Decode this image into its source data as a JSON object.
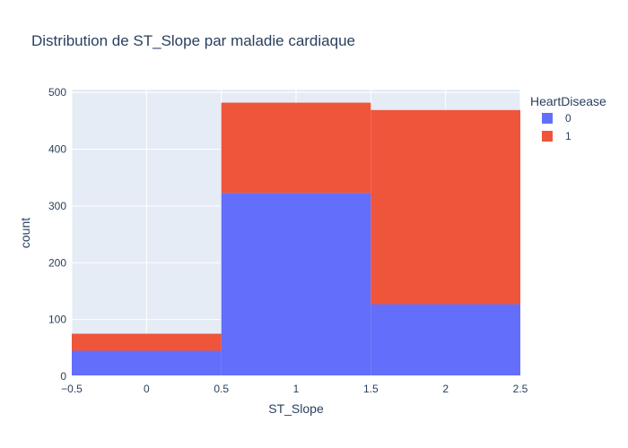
{
  "colors": {
    "plot_bg": "#e5ecf6",
    "grid": "#ffffff",
    "text": "#2a3f5f"
  },
  "chart_data": {
    "type": "bar",
    "barmode": "stack",
    "title": "Distribution de ST_Slope par maladie cardiaque",
    "xlabel": "ST_Slope",
    "ylabel": "count",
    "xlim": [
      -0.5,
      2.5
    ],
    "ylim": [
      0,
      505
    ],
    "x_ticks": [
      "−0.5",
      "0",
      "0.5",
      "1",
      "1.5",
      "2",
      "2.5"
    ],
    "x_tick_values": [
      -0.5,
      0,
      0.5,
      1,
      1.5,
      2,
      2.5
    ],
    "y_ticks": [
      "0",
      "100",
      "200",
      "300",
      "400",
      "500"
    ],
    "y_tick_values": [
      0,
      100,
      200,
      300,
      400,
      500
    ],
    "categories": [
      0,
      1,
      2
    ],
    "bin_width": 1,
    "grid": true,
    "legend": {
      "title": "HeartDisease",
      "placement": "top-right"
    },
    "series": [
      {
        "name": "0",
        "color": "#636efa",
        "values": [
          45,
          323,
          127
        ]
      },
      {
        "name": "1",
        "color": "#ef553b",
        "values": [
          30,
          159,
          342
        ]
      }
    ]
  }
}
